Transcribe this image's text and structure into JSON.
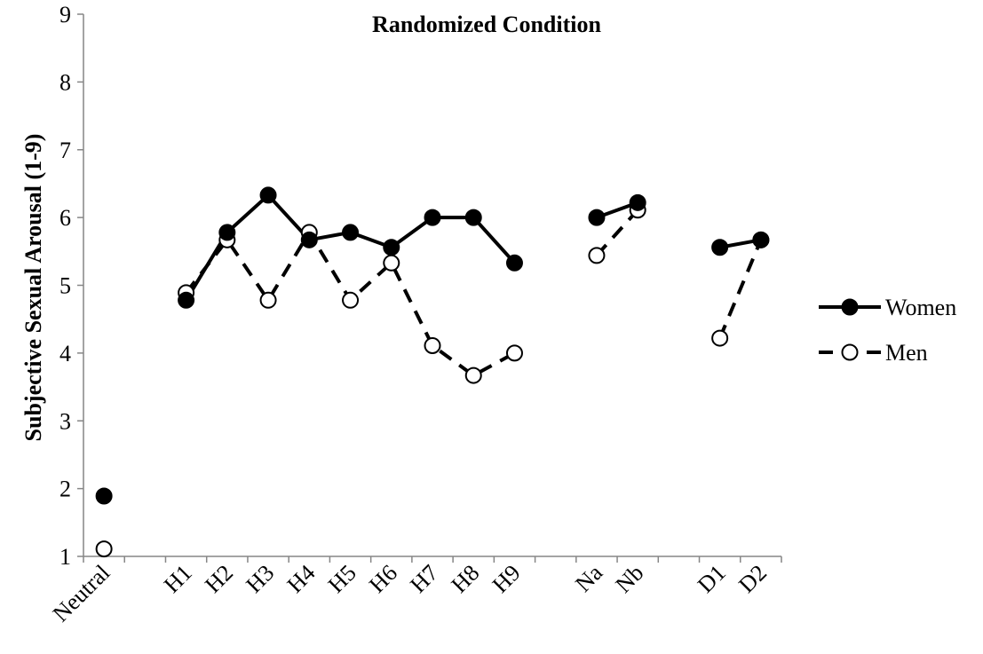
{
  "chart_data": {
    "type": "line",
    "title": "Randomized Condition",
    "xlabel": "",
    "ylabel": "Subjective Sexual Arousal (1-9)",
    "ylim": [
      1,
      9
    ],
    "yticks": [
      "1",
      "2",
      "3",
      "4",
      "5",
      "6",
      "7",
      "8",
      "9"
    ],
    "categories": [
      "Neutral",
      "",
      "H1",
      "H2",
      "H3",
      "H4",
      "H5",
      "H6",
      "H7",
      "H8",
      "H9",
      "",
      "Na",
      "Nb",
      "",
      "D1",
      "D2"
    ],
    "segments": [
      [
        0,
        0
      ],
      [
        2,
        10
      ],
      [
        12,
        13
      ],
      [
        15,
        16
      ]
    ],
    "grid": false,
    "legend_position": "right",
    "series": [
      {
        "name": "Women",
        "style": "solid",
        "marker": "filled-circle",
        "color": "#000000",
        "values": [
          1.89,
          null,
          4.78,
          5.78,
          6.33,
          5.67,
          5.78,
          5.56,
          6.0,
          6.0,
          5.33,
          null,
          6.0,
          6.22,
          null,
          5.56,
          5.67
        ]
      },
      {
        "name": "Men",
        "style": "dashed",
        "marker": "open-circle",
        "color": "#000000",
        "values": [
          1.11,
          null,
          4.89,
          5.67,
          4.78,
          5.78,
          4.78,
          5.33,
          4.11,
          3.67,
          4.0,
          null,
          5.44,
          6.11,
          null,
          4.22,
          5.67
        ]
      }
    ]
  }
}
